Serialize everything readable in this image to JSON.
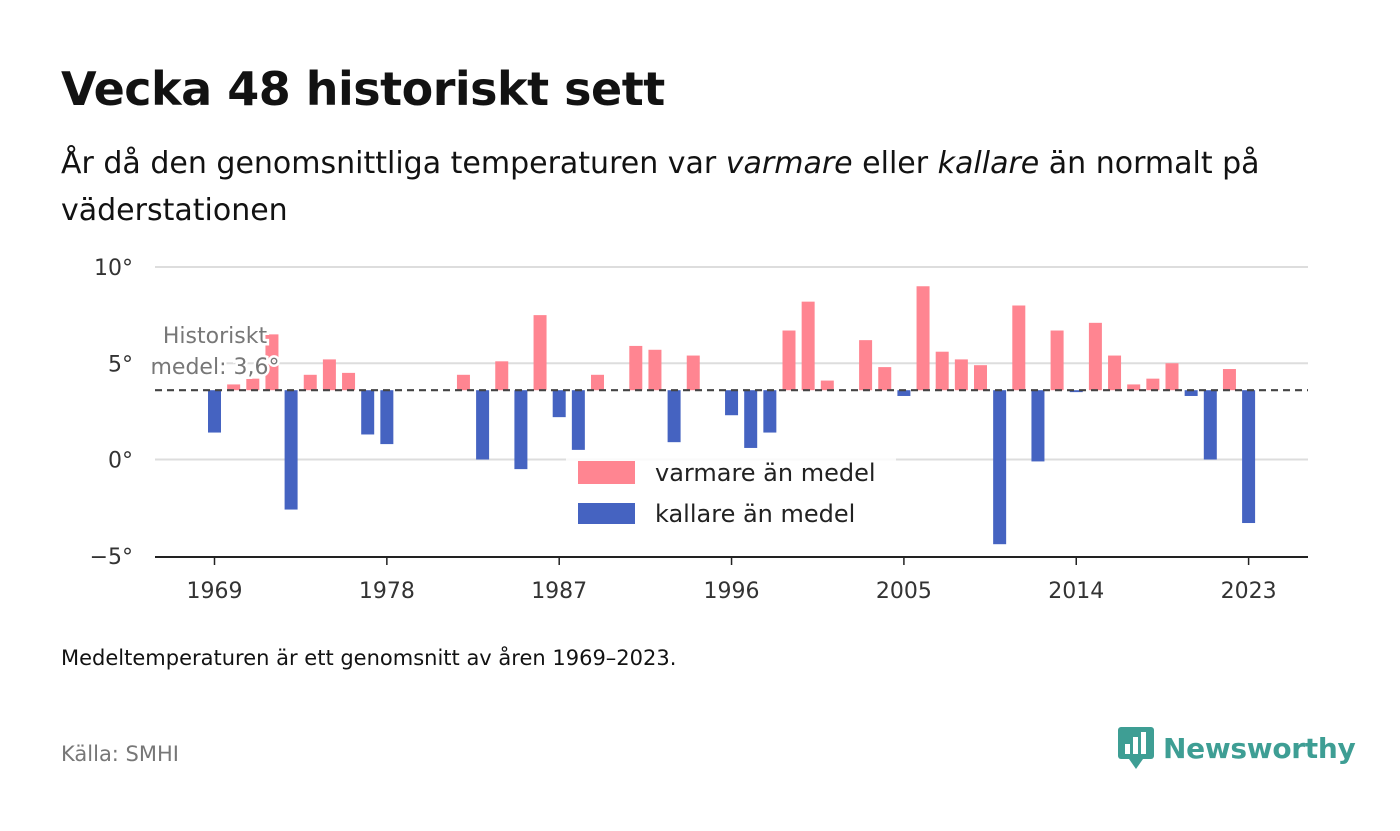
{
  "title": "Vecka 48 historiskt sett",
  "subtitle": {
    "part1": "År då den genomsnittliga temperaturen var ",
    "warm_word": "varmare",
    "part2": " eller ",
    "cold_word": "kallare",
    "part3": " än normalt på väderstationen"
  },
  "note": "Medeltemperaturen är ett genomsnitt av åren 1969–2023.",
  "source": "Källa: SMHI",
  "logo_text": "Newsworthy",
  "colors": {
    "warm": "#ff8591",
    "cold": "#4563c1",
    "mean_line": "#444444",
    "grid": "#dddddd",
    "brand": "#3e9e94"
  },
  "chart_data": {
    "type": "bar",
    "baseline": 3.6,
    "ylim": [
      -5,
      10
    ],
    "yticks": [
      -5,
      0,
      5,
      10
    ],
    "ytick_labels": [
      "−5°",
      "0°",
      "5°",
      "10°"
    ],
    "xticks": [
      1969,
      1978,
      1987,
      1996,
      2005,
      2014,
      2023
    ],
    "xlabel": "",
    "ylabel": "",
    "legend": {
      "position": "center",
      "warm_label": "varmare än medel",
      "cold_label": "kallare än medel"
    },
    "annotation": {
      "lines": [
        "Historiskt",
        "medel: 3,6°"
      ]
    },
    "years": [
      1969,
      1970,
      1971,
      1972,
      1973,
      1974,
      1975,
      1976,
      1977,
      1978,
      1979,
      1980,
      1981,
      1982,
      1983,
      1984,
      1985,
      1986,
      1987,
      1988,
      1989,
      1990,
      1991,
      1992,
      1993,
      1994,
      1995,
      1996,
      1997,
      1998,
      1999,
      2000,
      2001,
      2002,
      2003,
      2004,
      2005,
      2006,
      2007,
      2008,
      2009,
      2010,
      2011,
      2012,
      2013,
      2014,
      2015,
      2016,
      2017,
      2018,
      2019,
      2020,
      2021,
      2022,
      2023
    ],
    "values": [
      1.4,
      3.9,
      4.2,
      6.5,
      -2.6,
      4.4,
      5.2,
      4.5,
      1.3,
      0.8,
      null,
      null,
      null,
      4.4,
      0.0,
      5.1,
      -0.5,
      7.5,
      2.2,
      0.5,
      4.4,
      null,
      5.9,
      5.7,
      0.9,
      5.4,
      null,
      2.3,
      0.6,
      1.4,
      6.7,
      8.2,
      4.1,
      null,
      6.2,
      4.8,
      3.3,
      9.0,
      5.6,
      5.2,
      4.9,
      -4.4,
      8.0,
      -0.1,
      6.7,
      3.5,
      7.1,
      5.4,
      3.9,
      4.2,
      5.0,
      3.3,
      0.0,
      4.7,
      -3.3
    ]
  }
}
